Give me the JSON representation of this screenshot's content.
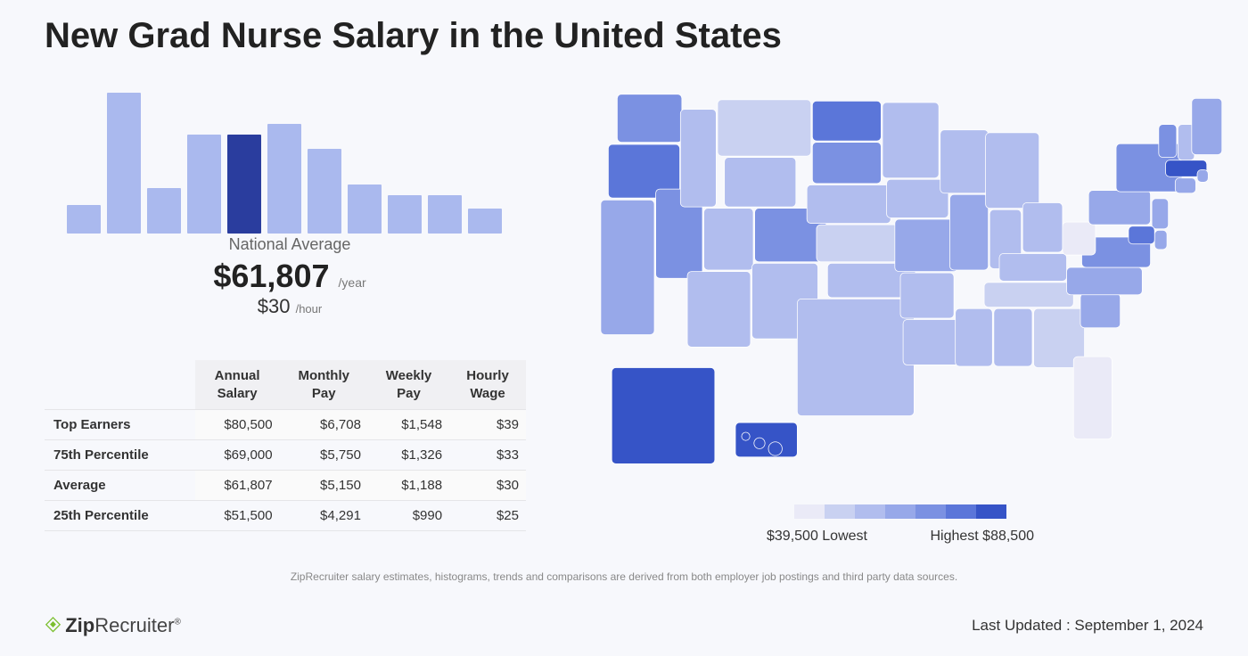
{
  "title": "New Grad Nurse Salary in the United States",
  "histogram": {
    "type": "bar",
    "bars": [
      20,
      100,
      32,
      70,
      70,
      78,
      60,
      35,
      27,
      27,
      18
    ],
    "highlight_index": 4,
    "bar_color": "#aab9ee",
    "highlight_color": "#2a3d9e",
    "label": "National Average",
    "annual": "$61,807",
    "annual_suffix": "/year",
    "hourly": "$30",
    "hourly_suffix": "/hour"
  },
  "table": {
    "columns": [
      "",
      "Annual Salary",
      "Monthly Pay",
      "Weekly Pay",
      "Hourly Wage"
    ],
    "rows": [
      [
        "Top Earners",
        "$80,500",
        "$6,708",
        "$1,548",
        "$39"
      ],
      [
        "75th Percentile",
        "$69,000",
        "$5,750",
        "$1,326",
        "$33"
      ],
      [
        "Average",
        "$61,807",
        "$5,150",
        "$1,188",
        "$30"
      ],
      [
        "25th Percentile",
        "$51,500",
        "$4,291",
        "$990",
        "$25"
      ]
    ]
  },
  "legend": {
    "swatches": [
      "#eaeaf7",
      "#c9d1f1",
      "#b1bdee",
      "#97a8e9",
      "#7b91e2",
      "#5b76d9",
      "#3654c7"
    ],
    "low_label": "$39,500 Lowest",
    "high_label": "Highest $88,500"
  },
  "map": {
    "states": {
      "WA": "#7b91e2",
      "OR": "#5b76d9",
      "CA": "#97a8e9",
      "NV": "#7b91e2",
      "ID": "#b1bdee",
      "MT": "#c9d1f1",
      "WY": "#b1bdee",
      "UT": "#b1bdee",
      "AZ": "#b1bdee",
      "CO": "#7b91e2",
      "NM": "#b1bdee",
      "ND": "#5b76d9",
      "SD": "#7b91e2",
      "NE": "#b1bdee",
      "KS": "#c9d1f1",
      "OK": "#b1bdee",
      "TX": "#b1bdee",
      "MN": "#b1bdee",
      "IA": "#b1bdee",
      "MO": "#97a8e9",
      "AR": "#b1bdee",
      "LA": "#b1bdee",
      "WI": "#b1bdee",
      "IL": "#97a8e9",
      "MI": "#b1bdee",
      "IN": "#b1bdee",
      "OH": "#b1bdee",
      "KY": "#b1bdee",
      "TN": "#c9d1f1",
      "MS": "#b1bdee",
      "AL": "#b1bdee",
      "GA": "#c9d1f1",
      "FL": "#eaeaf7",
      "SC": "#97a8e9",
      "NC": "#97a8e9",
      "VA": "#7b91e2",
      "WV": "#eaeaf7",
      "PA": "#97a8e9",
      "NY": "#7b91e2",
      "VT": "#7b91e2",
      "NH": "#b1bdee",
      "ME": "#97a8e9",
      "MA": "#3654c7",
      "RI": "#97a8e9",
      "CT": "#97a8e9",
      "NJ": "#97a8e9",
      "DE": "#97a8e9",
      "MD": "#5b76d9",
      "AK": "#3654c7",
      "HI": "#3654c7"
    }
  },
  "disclaimer": "ZipRecruiter salary estimates, histograms, trends and comparisons are derived from both employer job postings and third party data sources.",
  "logo": {
    "brand_a": "Zip",
    "brand_b": "Recruiter"
  },
  "updated": "Last Updated : September 1, 2024"
}
